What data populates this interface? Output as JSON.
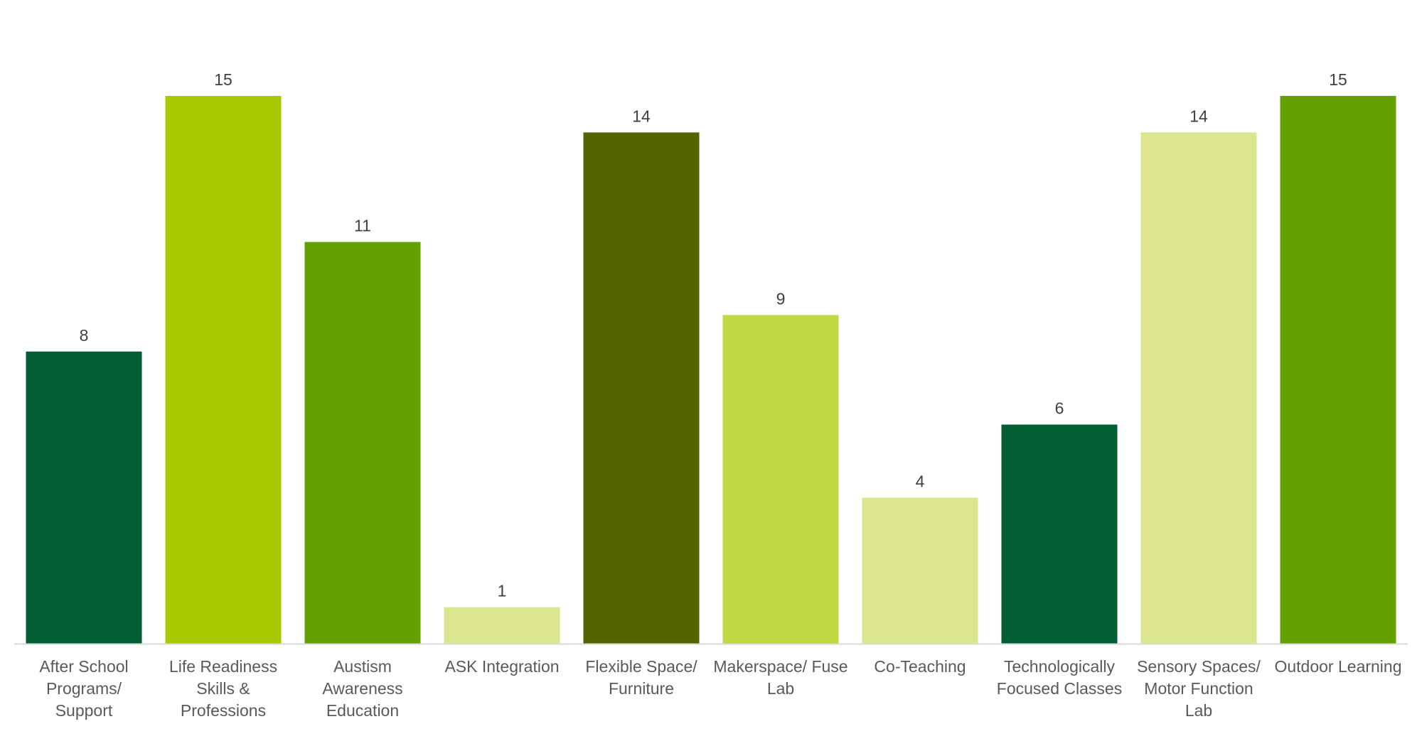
{
  "chart_data": {
    "type": "bar",
    "title": "",
    "xlabel": "",
    "ylabel": "",
    "ylim": [
      0,
      15
    ],
    "grid": false,
    "legend": "none",
    "categories": [
      [
        "After School",
        "Programs/",
        "Support"
      ],
      [
        "Life Readiness",
        "Skills &",
        "Professions"
      ],
      [
        "Austism",
        "Awareness",
        "Education"
      ],
      [
        "ASK Integration"
      ],
      [
        "Flexible Space/",
        "Furniture"
      ],
      [
        "Makerspace/ Fuse",
        "Lab"
      ],
      [
        "Co-Teaching"
      ],
      [
        "Technologically",
        "Focused Classes"
      ],
      [
        "Sensory Spaces/",
        "Motor Function",
        "Lab"
      ],
      [
        "Outdoor Learning"
      ]
    ],
    "values": [
      8,
      15,
      11,
      1,
      14,
      9,
      4,
      6,
      14,
      15
    ],
    "colors": [
      "#005E32",
      "#A9C800",
      "#64A000",
      "#DCE68E",
      "#526400",
      "#C1D845",
      "#DCE68E",
      "#005E32",
      "#DCE68E",
      "#64A000"
    ],
    "axis_color": "#D9D9D9"
  }
}
